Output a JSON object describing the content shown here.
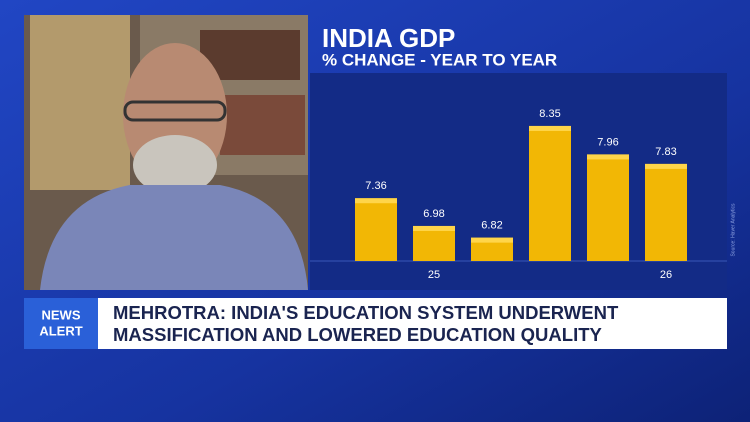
{
  "chart_data": {
    "type": "bar",
    "title": "INDIA GDP",
    "subtitle": "% CHANGE - YEAR TO YEAR",
    "categories": [
      null,
      "25",
      null,
      null,
      null,
      "26"
    ],
    "values": [
      7.36,
      6.98,
      6.82,
      8.35,
      7.96,
      7.83
    ],
    "color": "#f2b705",
    "ylim": [
      6.5,
      8.5
    ],
    "source": "Source: Haver Analytics"
  },
  "lower_third": {
    "tag": [
      "NEWS",
      "ALERT"
    ],
    "headline": [
      "MEHROTRA: INDIA'S EDUCATION SYSTEM UNDERWENT",
      "MASSIFICATION AND LOWERED EDUCATION QUALITY"
    ]
  }
}
